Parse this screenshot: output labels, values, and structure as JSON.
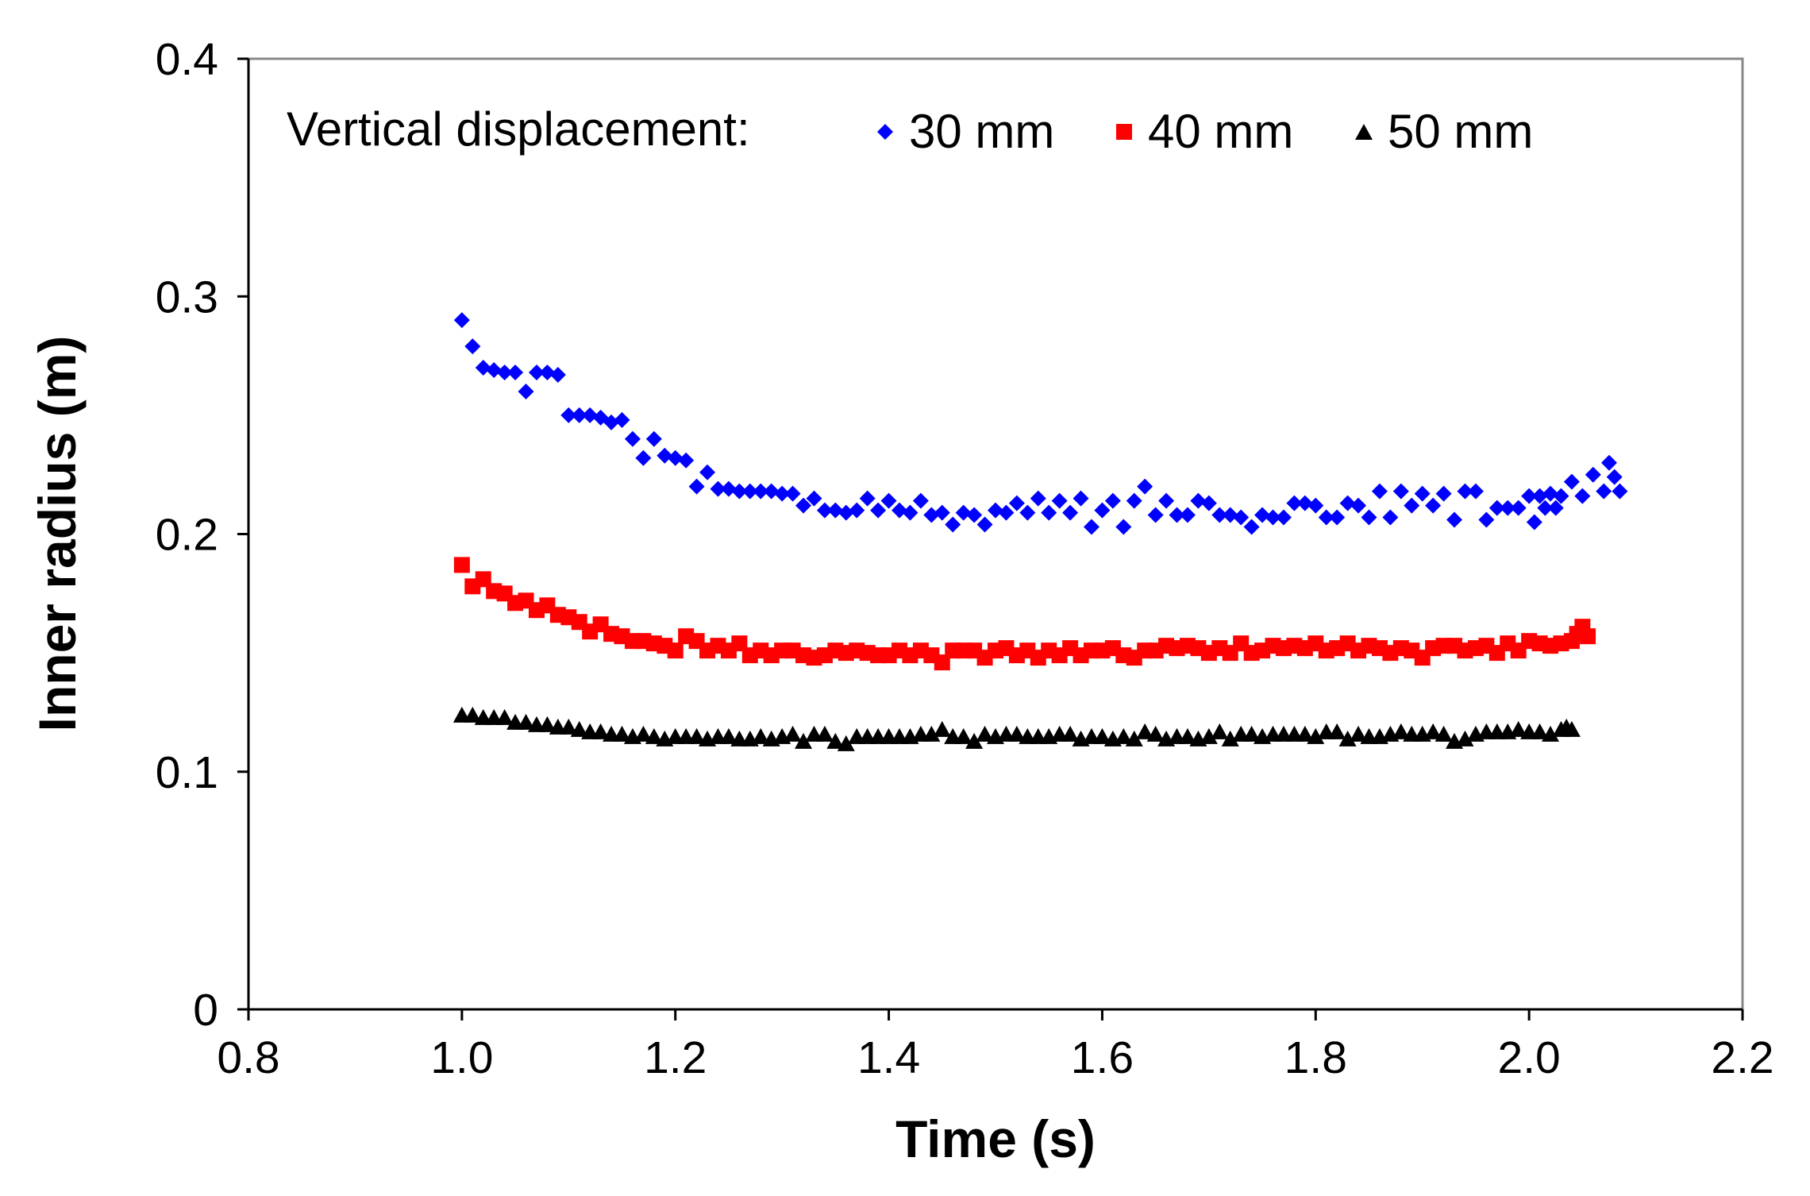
{
  "chart_data": {
    "type": "scatter",
    "title": "",
    "xlabel": "Time (s)",
    "ylabel": "Inner radius (m)",
    "xlim": [
      0.8,
      2.2
    ],
    "ylim": [
      0,
      0.4
    ],
    "xticks": [
      0.8,
      1.0,
      1.2,
      1.4,
      1.6,
      1.8,
      2.0,
      2.2
    ],
    "xtick_labels": [
      "0.8",
      "1.0",
      "1.2",
      "1.4",
      "1.6",
      "1.8",
      "2.0",
      "2.2"
    ],
    "yticks": [
      0,
      0.1,
      0.2,
      0.3,
      0.4
    ],
    "ytick_labels": [
      "0",
      "0.1",
      "0.2",
      "0.3",
      "0.4"
    ],
    "grid": false,
    "legend": {
      "title": "Vertical displacement:",
      "position": "top"
    },
    "series": [
      {
        "name": "30 mm",
        "marker": "diamond",
        "color": "#0000ff",
        "x": [
          1.0,
          1.01,
          1.02,
          1.03,
          1.04,
          1.05,
          1.06,
          1.07,
          1.08,
          1.09,
          1.1,
          1.11,
          1.12,
          1.13,
          1.14,
          1.15,
          1.16,
          1.17,
          1.18,
          1.19,
          1.2,
          1.21,
          1.22,
          1.23,
          1.24,
          1.25,
          1.26,
          1.27,
          1.28,
          1.29,
          1.3,
          1.31,
          1.32,
          1.33,
          1.34,
          1.35,
          1.36,
          1.37,
          1.38,
          1.39,
          1.4,
          1.41,
          1.42,
          1.43,
          1.44,
          1.45,
          1.46,
          1.47,
          1.48,
          1.49,
          1.5,
          1.51,
          1.52,
          1.53,
          1.54,
          1.55,
          1.56,
          1.57,
          1.58,
          1.59,
          1.6,
          1.61,
          1.62,
          1.63,
          1.64,
          1.65,
          1.66,
          1.67,
          1.68,
          1.69,
          1.7,
          1.71,
          1.72,
          1.73,
          1.74,
          1.75,
          1.76,
          1.77,
          1.78,
          1.79,
          1.8,
          1.81,
          1.82,
          1.83,
          1.84,
          1.85,
          1.86,
          1.87,
          1.88,
          1.89,
          1.9,
          1.91,
          1.92,
          1.93,
          1.94,
          1.95,
          1.96,
          1.97,
          1.98,
          1.99,
          2.0,
          2.005,
          2.01,
          2.015,
          2.02,
          2.025,
          2.03,
          2.04,
          2.05,
          2.06,
          2.07,
          2.075,
          2.08,
          2.085
        ],
        "y": [
          0.29,
          0.279,
          0.27,
          0.269,
          0.268,
          0.268,
          0.26,
          0.268,
          0.268,
          0.267,
          0.25,
          0.25,
          0.25,
          0.249,
          0.247,
          0.248,
          0.24,
          0.232,
          0.24,
          0.233,
          0.232,
          0.231,
          0.22,
          0.226,
          0.219,
          0.219,
          0.218,
          0.218,
          0.218,
          0.218,
          0.217,
          0.217,
          0.212,
          0.215,
          0.21,
          0.21,
          0.209,
          0.21,
          0.215,
          0.21,
          0.214,
          0.21,
          0.209,
          0.214,
          0.208,
          0.209,
          0.204,
          0.209,
          0.208,
          0.204,
          0.21,
          0.209,
          0.213,
          0.209,
          0.215,
          0.209,
          0.214,
          0.209,
          0.215,
          0.203,
          0.21,
          0.214,
          0.203,
          0.214,
          0.22,
          0.208,
          0.214,
          0.208,
          0.208,
          0.214,
          0.213,
          0.208,
          0.208,
          0.207,
          0.203,
          0.208,
          0.207,
          0.207,
          0.213,
          0.213,
          0.212,
          0.207,
          0.207,
          0.213,
          0.212,
          0.207,
          0.218,
          0.207,
          0.218,
          0.212,
          0.217,
          0.212,
          0.217,
          0.206,
          0.218,
          0.218,
          0.206,
          0.211,
          0.211,
          0.211,
          0.216,
          0.205,
          0.216,
          0.211,
          0.217,
          0.211,
          0.216,
          0.222,
          0.216,
          0.225,
          0.218,
          0.23,
          0.224,
          0.218
        ]
      },
      {
        "name": "40 mm",
        "marker": "square",
        "color": "#ff0000",
        "x": [
          1.0,
          1.01,
          1.02,
          1.03,
          1.04,
          1.05,
          1.06,
          1.07,
          1.08,
          1.09,
          1.1,
          1.11,
          1.12,
          1.13,
          1.14,
          1.15,
          1.16,
          1.17,
          1.18,
          1.19,
          1.2,
          1.21,
          1.22,
          1.23,
          1.24,
          1.25,
          1.26,
          1.27,
          1.28,
          1.29,
          1.3,
          1.31,
          1.32,
          1.33,
          1.34,
          1.35,
          1.36,
          1.37,
          1.38,
          1.39,
          1.4,
          1.41,
          1.42,
          1.43,
          1.44,
          1.45,
          1.46,
          1.47,
          1.48,
          1.49,
          1.5,
          1.51,
          1.52,
          1.53,
          1.54,
          1.55,
          1.56,
          1.57,
          1.58,
          1.59,
          1.6,
          1.61,
          1.62,
          1.63,
          1.64,
          1.65,
          1.66,
          1.67,
          1.68,
          1.69,
          1.7,
          1.71,
          1.72,
          1.73,
          1.74,
          1.75,
          1.76,
          1.77,
          1.78,
          1.79,
          1.8,
          1.81,
          1.82,
          1.83,
          1.84,
          1.85,
          1.86,
          1.87,
          1.88,
          1.89,
          1.9,
          1.91,
          1.92,
          1.93,
          1.94,
          1.95,
          1.96,
          1.97,
          1.98,
          1.99,
          2.0,
          2.01,
          2.02,
          2.03,
          2.04,
          2.045,
          2.05,
          2.055
        ],
        "y": [
          0.187,
          0.178,
          0.181,
          0.176,
          0.175,
          0.171,
          0.172,
          0.168,
          0.17,
          0.166,
          0.165,
          0.163,
          0.159,
          0.162,
          0.158,
          0.157,
          0.155,
          0.155,
          0.154,
          0.153,
          0.151,
          0.157,
          0.155,
          0.151,
          0.153,
          0.151,
          0.154,
          0.149,
          0.151,
          0.149,
          0.151,
          0.151,
          0.149,
          0.148,
          0.149,
          0.151,
          0.15,
          0.151,
          0.15,
          0.149,
          0.149,
          0.151,
          0.149,
          0.151,
          0.149,
          0.146,
          0.151,
          0.151,
          0.151,
          0.148,
          0.151,
          0.152,
          0.149,
          0.151,
          0.148,
          0.151,
          0.149,
          0.152,
          0.149,
          0.151,
          0.151,
          0.152,
          0.149,
          0.148,
          0.151,
          0.151,
          0.153,
          0.152,
          0.153,
          0.152,
          0.15,
          0.152,
          0.15,
          0.154,
          0.15,
          0.151,
          0.153,
          0.152,
          0.153,
          0.152,
          0.154,
          0.151,
          0.152,
          0.154,
          0.151,
          0.153,
          0.152,
          0.15,
          0.152,
          0.151,
          0.148,
          0.152,
          0.153,
          0.153,
          0.151,
          0.152,
          0.153,
          0.15,
          0.154,
          0.151,
          0.155,
          0.154,
          0.153,
          0.154,
          0.155,
          0.158,
          0.161,
          0.157
        ]
      },
      {
        "name": "50 mm",
        "marker": "triangle",
        "color": "#000000",
        "x": [
          1.0,
          1.01,
          1.02,
          1.03,
          1.04,
          1.05,
          1.06,
          1.07,
          1.08,
          1.09,
          1.1,
          1.11,
          1.12,
          1.13,
          1.14,
          1.15,
          1.16,
          1.17,
          1.18,
          1.19,
          1.2,
          1.21,
          1.22,
          1.23,
          1.24,
          1.25,
          1.26,
          1.27,
          1.28,
          1.29,
          1.3,
          1.31,
          1.32,
          1.33,
          1.34,
          1.35,
          1.36,
          1.37,
          1.38,
          1.39,
          1.4,
          1.41,
          1.42,
          1.43,
          1.44,
          1.45,
          1.46,
          1.47,
          1.48,
          1.49,
          1.5,
          1.51,
          1.52,
          1.53,
          1.54,
          1.55,
          1.56,
          1.57,
          1.58,
          1.59,
          1.6,
          1.61,
          1.62,
          1.63,
          1.64,
          1.65,
          1.66,
          1.67,
          1.68,
          1.69,
          1.7,
          1.71,
          1.72,
          1.73,
          1.74,
          1.75,
          1.76,
          1.77,
          1.78,
          1.79,
          1.8,
          1.81,
          1.82,
          1.83,
          1.84,
          1.85,
          1.86,
          1.87,
          1.88,
          1.89,
          1.9,
          1.91,
          1.92,
          1.93,
          1.94,
          1.95,
          1.96,
          1.97,
          1.98,
          1.99,
          2.0,
          2.01,
          2.02,
          2.03,
          2.035,
          2.04
        ],
        "y": [
          0.124,
          0.124,
          0.123,
          0.123,
          0.123,
          0.121,
          0.121,
          0.12,
          0.12,
          0.119,
          0.119,
          0.118,
          0.117,
          0.117,
          0.116,
          0.116,
          0.115,
          0.116,
          0.115,
          0.114,
          0.115,
          0.115,
          0.115,
          0.114,
          0.115,
          0.115,
          0.114,
          0.114,
          0.115,
          0.114,
          0.115,
          0.116,
          0.113,
          0.116,
          0.116,
          0.113,
          0.112,
          0.115,
          0.115,
          0.115,
          0.115,
          0.115,
          0.115,
          0.116,
          0.116,
          0.118,
          0.115,
          0.115,
          0.113,
          0.116,
          0.115,
          0.116,
          0.116,
          0.115,
          0.115,
          0.115,
          0.116,
          0.116,
          0.114,
          0.115,
          0.115,
          0.114,
          0.115,
          0.114,
          0.117,
          0.116,
          0.114,
          0.115,
          0.115,
          0.114,
          0.115,
          0.117,
          0.114,
          0.116,
          0.116,
          0.115,
          0.116,
          0.116,
          0.116,
          0.116,
          0.115,
          0.117,
          0.117,
          0.114,
          0.116,
          0.115,
          0.115,
          0.116,
          0.117,
          0.116,
          0.116,
          0.117,
          0.116,
          0.113,
          0.114,
          0.116,
          0.117,
          0.117,
          0.117,
          0.118,
          0.117,
          0.117,
          0.116,
          0.118,
          0.119,
          0.118
        ]
      }
    ]
  }
}
